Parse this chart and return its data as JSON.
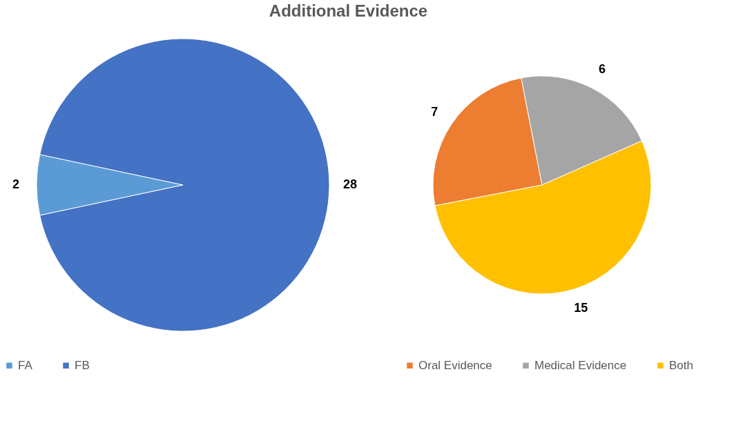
{
  "chart_data": [
    {
      "type": "pie",
      "title": "Additional Evidence",
      "categories": [
        "FA",
        "FB"
      ],
      "values": [
        2,
        28
      ],
      "colors": [
        "#5b9bd5",
        "#4472c4"
      ],
      "data_labels": true,
      "legend": "bottom"
    },
    {
      "type": "pie",
      "categories": [
        "Oral Evidence",
        "Medical Evidence",
        "Both"
      ],
      "values": [
        7,
        6,
        15
      ],
      "colors": [
        "#ed7d31",
        "#a5a5a5",
        "#ffc000"
      ],
      "data_labels": true,
      "legend": "bottom"
    }
  ]
}
